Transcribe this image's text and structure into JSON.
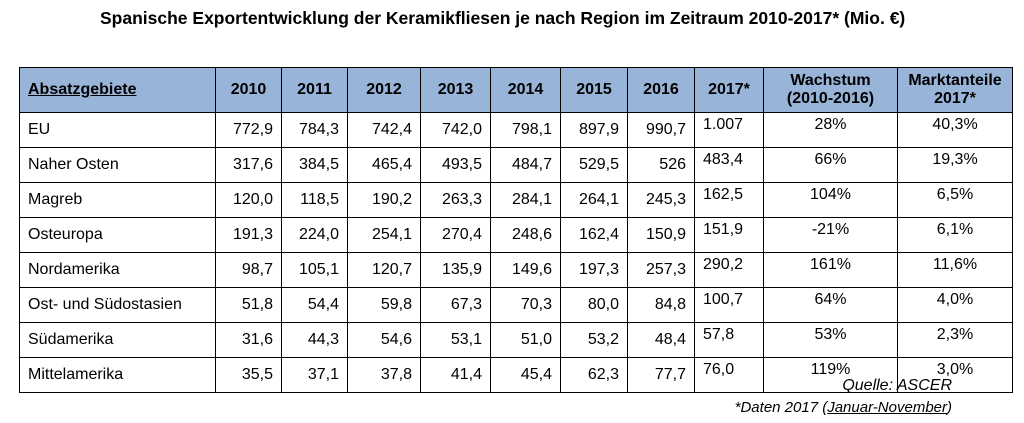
{
  "title": "Spanische Exportentwicklung der Keramikfliesen je nach Region im Zeitraum 2010-2017* (Mio. €)",
  "source": "Quelle: ASCER",
  "footnote_prefix": "*Daten 2017 (",
  "footnote_range": "Januar-November",
  "footnote_suffix": ")",
  "chart_data": {
    "type": "table",
    "title": "Spanische Exportentwicklung der Keramikfliesen je nach Region im Zeitraum 2010-2017* (Mio. €)",
    "columns": [
      "Absatzgebiete",
      "2010",
      "2011",
      "2012",
      "2013",
      "2014",
      "2015",
      "2016",
      "2017*",
      "Wachstum (2010-2016)",
      "Marktanteile 2017*"
    ],
    "column_labels": [
      [
        "Absatzgebiete"
      ],
      [
        "2010"
      ],
      [
        "2011"
      ],
      [
        "2012"
      ],
      [
        "2013"
      ],
      [
        "2014"
      ],
      [
        "2015"
      ],
      [
        "2016"
      ],
      [
        "2017*"
      ],
      [
        "Wachstum",
        "(2010-2016)"
      ],
      [
        "Marktanteile",
        "2017*"
      ]
    ],
    "rows": [
      [
        "EU",
        "772,9",
        "784,3",
        "742,4",
        "742,0",
        "798,1",
        "897,9",
        "990,7",
        "1.007",
        "28%",
        "40,3%"
      ],
      [
        "Naher Osten",
        "317,6",
        "384,5",
        "465,4",
        "493,5",
        "484,7",
        "529,5",
        "526",
        "483,4",
        "66%",
        "19,3%"
      ],
      [
        "Magreb",
        "120,0",
        "118,5",
        "190,2",
        "263,3",
        "284,1",
        "264,1",
        "245,3",
        "162,5",
        "104%",
        "6,5%"
      ],
      [
        "Osteuropa",
        "191,3",
        "224,0",
        "254,1",
        "270,4",
        "248,6",
        "162,4",
        "150,9",
        "151,9",
        "-21%",
        "6,1%"
      ],
      [
        "Nordamerika",
        "98,7",
        "105,1",
        "120,7",
        "135,9",
        "149,6",
        "197,3",
        "257,3",
        "290,2",
        "161%",
        "11,6%"
      ],
      [
        "Ost- und Südostasien",
        "51,8",
        "54,4",
        "59,8",
        "67,3",
        "70,3",
        "80,0",
        "84,8",
        "100,7",
        "64%",
        "4,0%"
      ],
      [
        "Südamerika",
        "31,6",
        "44,3",
        "54,6",
        "53,1",
        "51,0",
        "53,2",
        "48,4",
        "57,8",
        "53%",
        "2,3%"
      ],
      [
        "Mittelamerika",
        "35,5",
        "37,1",
        "37,8",
        "41,4",
        "45,4",
        "62,3",
        "77,7",
        "76,0",
        "119%",
        "3,0%"
      ]
    ]
  },
  "colors": {
    "header_background": "#98b4d8",
    "border": "#000000"
  }
}
